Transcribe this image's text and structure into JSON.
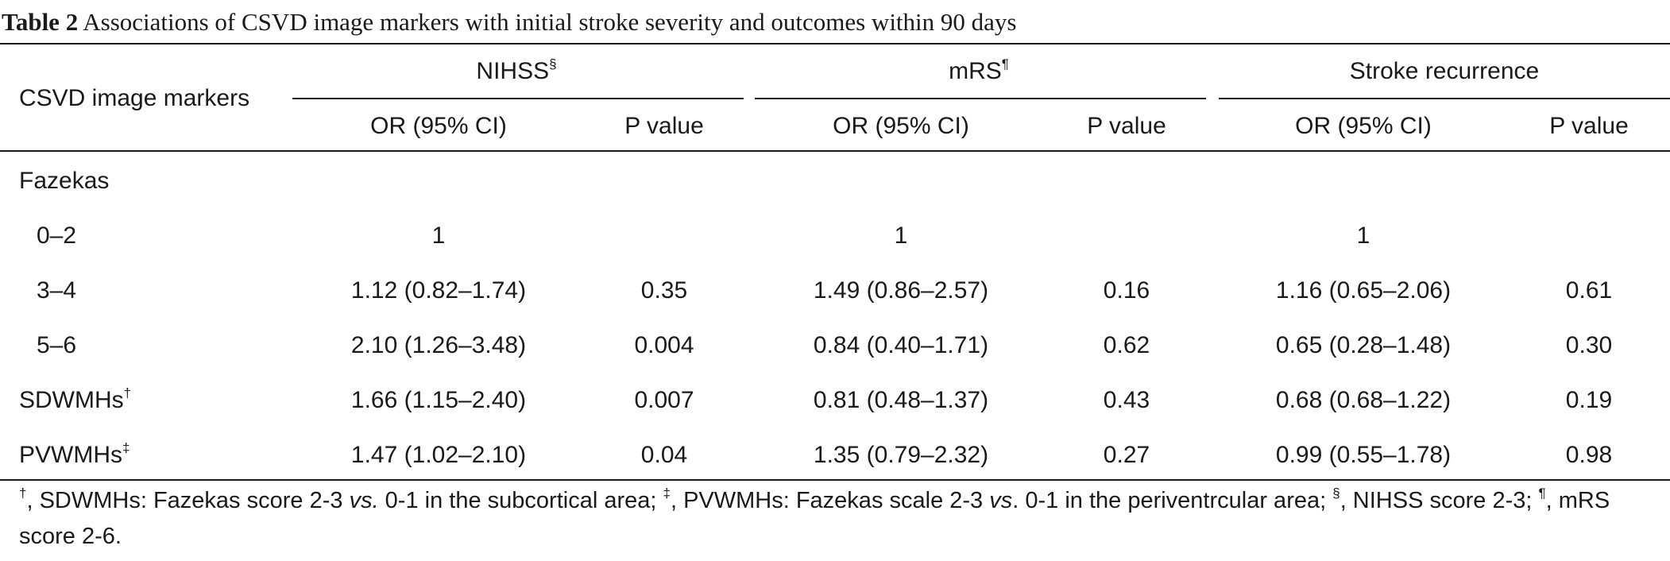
{
  "caption": {
    "label": "Table 2",
    "text": "Associations of CSVD image markers with initial stroke severity and outcomes within 90 days"
  },
  "header": {
    "row_label": "CSVD image markers",
    "groups": [
      {
        "name": "NIHSS",
        "sup": "§"
      },
      {
        "name": "mRS",
        "sup": "¶"
      },
      {
        "name": "Stroke recurrence",
        "sup": ""
      }
    ],
    "sub": {
      "or": "OR (95% CI)",
      "p": "P value"
    }
  },
  "rows": [
    {
      "label": "Fazekas",
      "sup": "",
      "indent": false,
      "cells": [
        "",
        "",
        "",
        "",
        "",
        ""
      ]
    },
    {
      "label": "0–2",
      "sup": "",
      "indent": true,
      "cells": [
        "1",
        "",
        "1",
        "",
        "1",
        ""
      ]
    },
    {
      "label": "3–4",
      "sup": "",
      "indent": true,
      "cells": [
        "1.12 (0.82–1.74)",
        "0.35",
        "1.49 (0.86–2.57)",
        "0.16",
        "1.16 (0.65–2.06)",
        "0.61"
      ]
    },
    {
      "label": "5–6",
      "sup": "",
      "indent": true,
      "cells": [
        "2.10 (1.26–3.48)",
        "0.004",
        "0.84 (0.40–1.71)",
        "0.62",
        "0.65 (0.28–1.48)",
        "0.30"
      ]
    },
    {
      "label": "SDWMHs",
      "sup": "†",
      "indent": false,
      "cells": [
        "1.66 (1.15–2.40)",
        "0.007",
        "0.81 (0.48–1.37)",
        "0.43",
        "0.68 (0.68–1.22)",
        "0.19"
      ]
    },
    {
      "label": "PVWMHs",
      "sup": "‡",
      "indent": false,
      "cells": [
        "1.47 (1.02–2.10)",
        "0.04",
        "1.35 (0.79–2.32)",
        "0.27",
        "0.99 (0.55–1.78)",
        "0.98"
      ]
    }
  ],
  "footnote": {
    "dagger_sym": "†",
    "dagger_a": ", SDWMHs: Fazekas score 2-3 ",
    "vs1": "vs.",
    "dagger_b": " 0-1 in the subcortical area; ",
    "ddagger_sym": "‡",
    "ddagger_a": ", PVWMHs: Fazekas scale 2-3 ",
    "vs2": "vs",
    "ddagger_b": ". 0-1 in the periventrcular area; ",
    "section_sym": "§",
    "section_text": ", NIHSS score 2-3; ",
    "pilcrow_sym": "¶",
    "pilcrow_text": ", mRS score 2-6."
  }
}
